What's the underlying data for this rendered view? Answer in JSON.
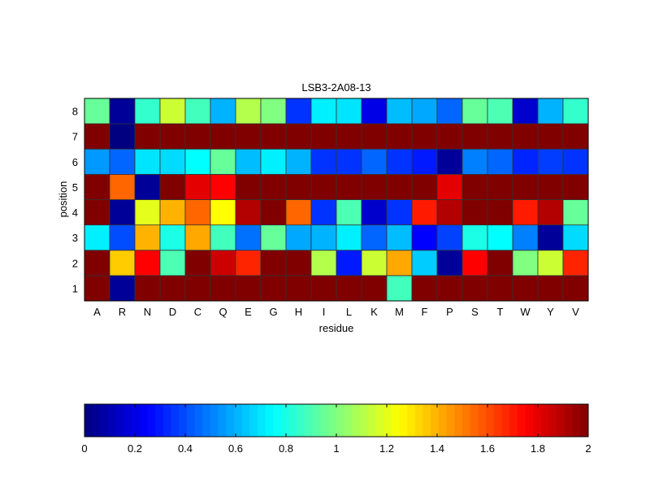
{
  "chart_data": {
    "type": "heatmap",
    "title": "LSB3-2A08-13",
    "xlabel": "residue",
    "ylabel": "position",
    "x_categories": [
      "A",
      "R",
      "N",
      "D",
      "C",
      "Q",
      "E",
      "G",
      "H",
      "I",
      "L",
      "K",
      "M",
      "F",
      "P",
      "S",
      "T",
      "W",
      "Y",
      "V"
    ],
    "y_categories": [
      "1",
      "2",
      "3",
      "4",
      "5",
      "6",
      "7",
      "8"
    ],
    "colormap": "jet",
    "clim": [
      0,
      2
    ],
    "colorbar": {
      "placement": "bottom",
      "ticks": [
        "0",
        "0.2",
        "0.4",
        "0.6",
        "0.8",
        "1",
        "1.2",
        "1.4",
        "1.6",
        "1.8",
        "2"
      ]
    },
    "values": {
      "1": [
        2,
        0.05,
        2,
        2,
        2,
        2,
        2,
        2,
        2,
        2,
        2,
        2,
        0.88,
        2,
        2,
        2,
        2,
        2,
        2,
        2
      ],
      "2": [
        2,
        1.35,
        1.75,
        0.9,
        2,
        1.85,
        1.68,
        2,
        2,
        1.1,
        0.3,
        1.15,
        1.42,
        0.65,
        0.05,
        1.75,
        2,
        1.0,
        1.15,
        1.68
      ],
      "3": [
        0.72,
        0.4,
        1.4,
        0.8,
        1.42,
        0.88,
        0.47,
        0.95,
        0.58,
        0.6,
        0.72,
        0.45,
        0.62,
        0.25,
        0.38,
        0.8,
        0.75,
        0.5,
        0.05,
        0.68
      ],
      "4": [
        2,
        0.05,
        1.2,
        1.4,
        1.55,
        1.25,
        1.9,
        2,
        1.55,
        0.35,
        0.9,
        0.15,
        0.35,
        1.7,
        1.9,
        2,
        2,
        1.7,
        1.9,
        0.95
      ],
      "5": [
        2,
        1.55,
        0.05,
        2,
        1.8,
        1.75,
        2,
        2,
        2,
        2,
        2,
        2,
        2,
        2,
        1.8,
        2,
        2,
        2,
        2,
        2
      ],
      "6": [
        0.55,
        0.45,
        0.7,
        0.68,
        0.75,
        0.95,
        0.62,
        0.72,
        0.6,
        0.35,
        0.35,
        0.45,
        0.35,
        0.3,
        0.05,
        0.5,
        0.45,
        0.32,
        0.37,
        0.35
      ],
      "7": [
        2,
        0.0,
        2,
        2,
        2,
        2,
        2,
        2,
        2,
        2,
        2,
        2,
        2,
        2,
        2,
        2,
        2,
        2,
        2,
        2
      ],
      "8": [
        0.95,
        0.05,
        0.85,
        1.15,
        0.88,
        0.6,
        1.1,
        1.0,
        0.35,
        0.72,
        0.7,
        0.2,
        0.62,
        0.58,
        0.45,
        0.95,
        0.9,
        0.15,
        0.6,
        0.85
      ]
    }
  }
}
